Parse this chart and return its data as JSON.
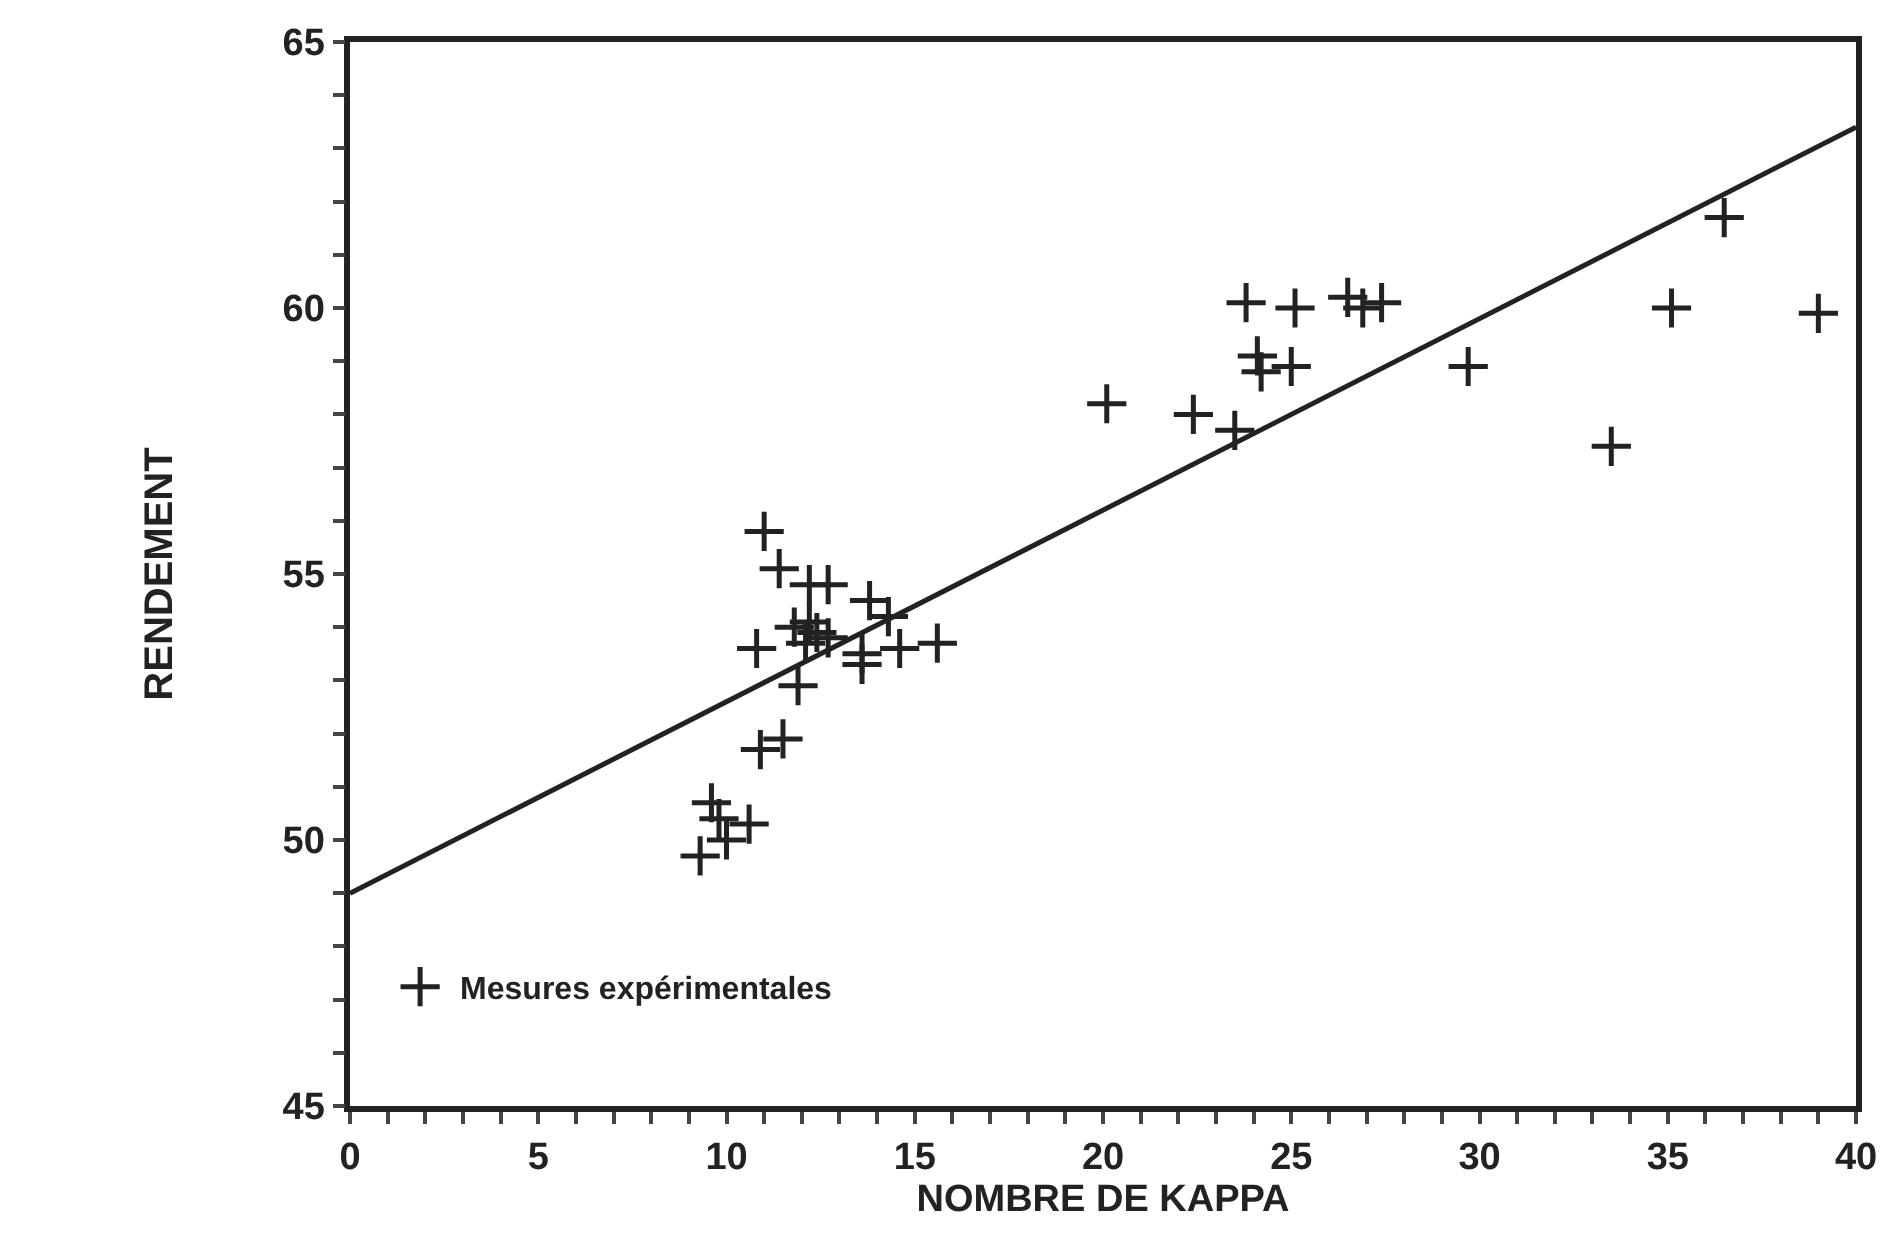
{
  "chart_data": {
    "type": "scatter",
    "xlabel": "NOMBRE DE KAPPA",
    "ylabel": "RENDEMENT",
    "legend": "bottom left",
    "grid": false,
    "xlim": [
      0,
      40
    ],
    "ylim": [
      45,
      65
    ],
    "xticks": [
      0,
      {
        "value": 1,
        "label": null
      },
      {
        "value": 2,
        "label": null
      },
      {
        "value": 3,
        "label": null
      },
      {
        "value": 4,
        "label": null
      },
      5,
      {
        "value": 6,
        "label": null
      },
      {
        "value": 7,
        "label": null
      },
      {
        "value": 8,
        "label": null
      },
      {
        "value": 9,
        "label": null
      },
      10,
      {
        "value": 11,
        "label": null
      },
      {
        "value": 12,
        "label": null
      },
      {
        "value": 13,
        "label": null
      },
      {
        "value": 14,
        "label": null
      },
      15,
      {
        "value": 16,
        "label": null
      },
      {
        "value": 17,
        "label": null
      },
      {
        "value": 18,
        "label": null
      },
      {
        "value": 19,
        "label": null
      },
      20,
      {
        "value": 21,
        "label": null
      },
      {
        "value": 22,
        "label": null
      },
      {
        "value": 23,
        "label": null
      },
      {
        "value": 24,
        "label": null
      },
      25,
      {
        "value": 26,
        "label": null
      },
      {
        "value": 27,
        "label": null
      },
      {
        "value": 28,
        "label": null
      },
      {
        "value": 29,
        "label": null
      },
      30,
      {
        "value": 31,
        "label": null
      },
      {
        "value": 32,
        "label": null
      },
      {
        "value": 33,
        "label": null
      },
      {
        "value": 34,
        "label": null
      },
      35,
      {
        "value": 36,
        "label": null
      },
      {
        "value": 37,
        "label": null
      },
      {
        "value": 38,
        "label": null
      },
      {
        "value": 39,
        "label": null
      },
      40
    ],
    "yticks": [
      45,
      {
        "value": 46,
        "label": null
      },
      {
        "value": 47,
        "label": null
      },
      {
        "value": 48,
        "label": null
      },
      {
        "value": 49,
        "label": null
      },
      50,
      {
        "value": 51,
        "label": null
      },
      {
        "value": 52,
        "label": null
      },
      {
        "value": 53,
        "label": null
      },
      {
        "value": 54,
        "label": null
      },
      55,
      {
        "value": 56,
        "label": null
      },
      {
        "value": 57,
        "label": null
      },
      {
        "value": 58,
        "label": null
      },
      {
        "value": 59,
        "label": null
      },
      60,
      {
        "value": 61,
        "label": null
      },
      {
        "value": 62,
        "label": null
      },
      {
        "value": 63,
        "label": null
      },
      {
        "value": 64,
        "label": null
      },
      65
    ],
    "series": [
      {
        "name": "Mesures expérimentales",
        "marker": "cross",
        "color": "#222222",
        "x": [
          9.3,
          9.6,
          9.8,
          10.0,
          10.6,
          10.9,
          11.5,
          10.8,
          11.0,
          11.4,
          11.9,
          12.2,
          12.7,
          11.8,
          12.2,
          12.4,
          12.1,
          12.7,
          13.8,
          14.3,
          13.6,
          13.6,
          14.6,
          15.6,
          20.1,
          22.4,
          23.5,
          23.8,
          24.1,
          24.2,
          25.0,
          25.1,
          26.5,
          26.9,
          27.4,
          29.7,
          36.5,
          35.1,
          39.0,
          33.5
        ],
        "values": [
          49.7,
          50.7,
          50.4,
          50.0,
          50.3,
          51.7,
          51.9,
          53.6,
          55.8,
          55.1,
          52.9,
          54.8,
          54.8,
          54.0,
          54.1,
          53.9,
          53.7,
          53.8,
          54.5,
          54.2,
          53.5,
          53.3,
          53.6,
          53.7,
          58.2,
          58.0,
          57.7,
          60.1,
          59.1,
          58.8,
          58.9,
          60.0,
          60.2,
          60.0,
          60.1,
          58.9,
          61.7,
          60.0,
          59.9,
          57.4
        ]
      },
      {
        "type": "line",
        "marker": "none",
        "color": "#222222",
        "x": [
          0,
          40
        ],
        "values": [
          49.0,
          63.4
        ]
      }
    ]
  }
}
